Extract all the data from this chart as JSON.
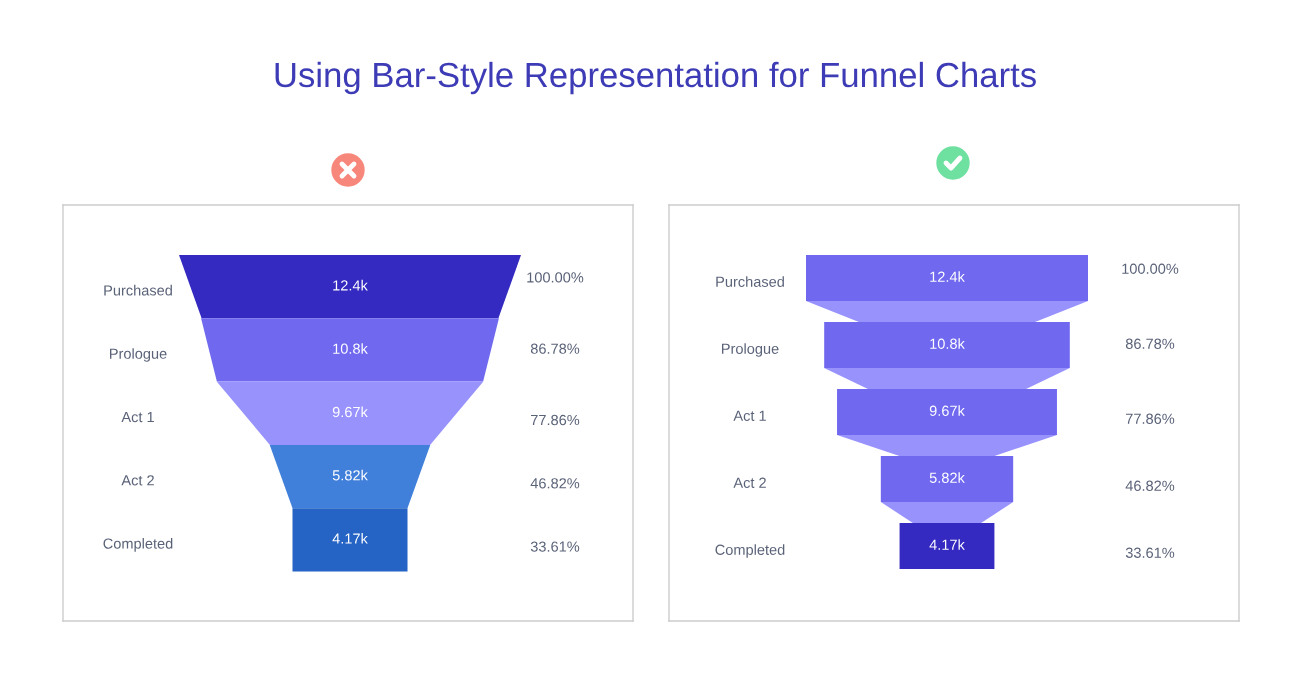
{
  "chart_data": [
    {
      "type": "other",
      "title": "Using Bar-Style Representation for Funnel Charts",
      "categories": [
        "Purchased",
        "Prologue",
        "Act 1",
        "Act 2",
        "Completed"
      ],
      "series": [
        {
          "values": [
            12.4,
            10.8,
            9.67,
            5.82,
            4.17
          ],
          "value_labels": [
            "12.4k",
            "10.8k",
            "9.67k",
            "5.82k",
            "4.17k"
          ],
          "colors": [
            "#3429c1",
            "#7069ef",
            "#9892fd",
            "#407fda",
            "#2563c5"
          ]
        },
        {
          "values": [
            100.0,
            86.78,
            77.86,
            46.82,
            33.61
          ],
          "value_labels": [
            "100.00%",
            "86.78%",
            "77.86%",
            "46.82%",
            "33.61%"
          ]
        }
      ]
    },
    {
      "type": "other",
      "categories": [
        "Purchased",
        "Prologue",
        "Act 1",
        "Act 2",
        "Completed"
      ],
      "series": [
        {
          "values": [
            12.4,
            10.8,
            9.67,
            5.82,
            4.17
          ],
          "value_labels": [
            "12.4k",
            "10.8k",
            "9.67k",
            "5.82k",
            "4.17k"
          ],
          "colors": [
            "#7069ef",
            "#7069ef",
            "#7069ef",
            "#7069ef",
            "#3429c1"
          ]
        },
        {
          "values": [
            100.0,
            86.78,
            77.86,
            46.82,
            33.61
          ],
          "value_labels": [
            "100.00%",
            "86.78%",
            "77.86%",
            "46.82%",
            "33.61%"
          ]
        }
      ]
    }
  ]
}
